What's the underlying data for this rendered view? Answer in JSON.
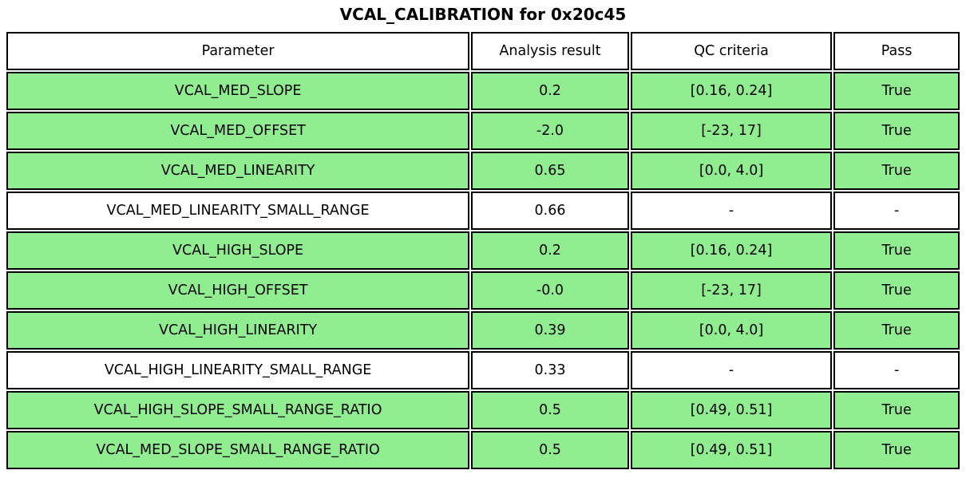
{
  "chart_data": {
    "type": "table",
    "title": "VCAL_CALIBRATION for 0x20c45",
    "columns": [
      "Parameter",
      "Analysis result",
      "QC criteria",
      "Pass"
    ],
    "rows": [
      {
        "cells": [
          "VCAL_MED_SLOPE",
          "0.2",
          "[0.16, 0.24]",
          "True"
        ],
        "highlight": "green"
      },
      {
        "cells": [
          "VCAL_MED_OFFSET",
          "-2.0",
          "[-23, 17]",
          "True"
        ],
        "highlight": "green"
      },
      {
        "cells": [
          "VCAL_MED_LINEARITY",
          "0.65",
          "[0.0, 4.0]",
          "True"
        ],
        "highlight": "green"
      },
      {
        "cells": [
          "VCAL_MED_LINEARITY_SMALL_RANGE",
          "0.66",
          "-",
          "-"
        ],
        "highlight": "white"
      },
      {
        "cells": [
          "VCAL_HIGH_SLOPE",
          "0.2",
          "[0.16, 0.24]",
          "True"
        ],
        "highlight": "green"
      },
      {
        "cells": [
          "VCAL_HIGH_OFFSET",
          "-0.0",
          "[-23, 17]",
          "True"
        ],
        "highlight": "green"
      },
      {
        "cells": [
          "VCAL_HIGH_LINEARITY",
          "0.39",
          "[0.0, 4.0]",
          "True"
        ],
        "highlight": "green"
      },
      {
        "cells": [
          "VCAL_HIGH_LINEARITY_SMALL_RANGE",
          "0.33",
          "-",
          "-"
        ],
        "highlight": "white"
      },
      {
        "cells": [
          "VCAL_HIGH_SLOPE_SMALL_RANGE_RATIO",
          "0.5",
          "[0.49, 0.51]",
          "True"
        ],
        "highlight": "green"
      },
      {
        "cells": [
          "VCAL_MED_SLOPE_SMALL_RANGE_RATIO",
          "0.5",
          "[0.49, 0.51]",
          "True"
        ],
        "highlight": "green"
      }
    ],
    "colors": {
      "highlight_green": "#90EE90",
      "row_white": "#ffffff",
      "border": "#000000",
      "text": "#000000"
    },
    "layout": {
      "header_background": "#ffffff",
      "legend": "none",
      "grid": "cell-borders"
    }
  }
}
